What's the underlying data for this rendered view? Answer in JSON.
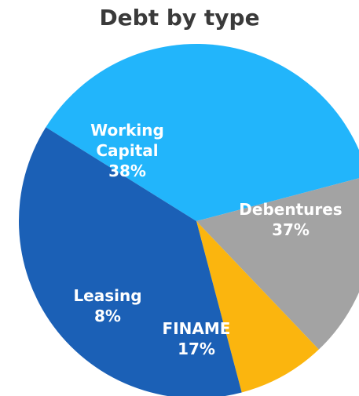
{
  "chart_data": {
    "type": "pie",
    "title": "Debt by type",
    "slices": [
      {
        "label": "Debentures",
        "value": 37,
        "value_label": "37%",
        "color": "#22b5fb"
      },
      {
        "label": "FINAME",
        "value": 17,
        "value_label": "17%",
        "color": "#a3a3a3"
      },
      {
        "label": "Leasing",
        "value": 8,
        "value_label": "8%",
        "color": "#fbb50e"
      },
      {
        "label": "Working Capital",
        "value": 38,
        "value_label": "38%",
        "color": "#1b60b6"
      }
    ]
  }
}
